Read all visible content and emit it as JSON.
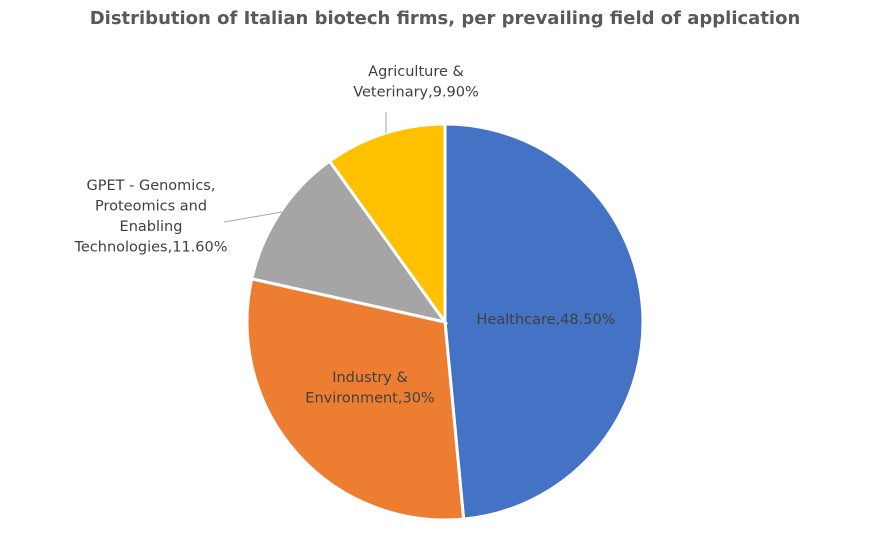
{
  "chart_data": {
    "type": "pie",
    "title": "Distribution of Italian biotech firms, per prevailing field of application",
    "slices": [
      {
        "name": "Healthcare",
        "value": 48.5,
        "color": "#4472C4",
        "label_lines": [
          "Healthcare,48.50%"
        ]
      },
      {
        "name": "Industry & Environment",
        "value": 30,
        "color": "#ED7D31",
        "label_lines": [
          "Industry &",
          "Environment,30%"
        ]
      },
      {
        "name": "GPET - Genomics, Proteomics and Enabling Technologies",
        "value": 11.6,
        "color": "#A5A5A5",
        "label_lines": [
          "GPET - Genomics,",
          "Proteomics and",
          "Enabling",
          "Technologies,11.60%"
        ]
      },
      {
        "name": "Agriculture & Veterinary",
        "value": 9.9,
        "color": "#FFC000",
        "label_lines": [
          "Agriculture &",
          "Veterinary,9.90%"
        ]
      }
    ],
    "start_angle_deg": 0,
    "direction": "clockwise"
  }
}
